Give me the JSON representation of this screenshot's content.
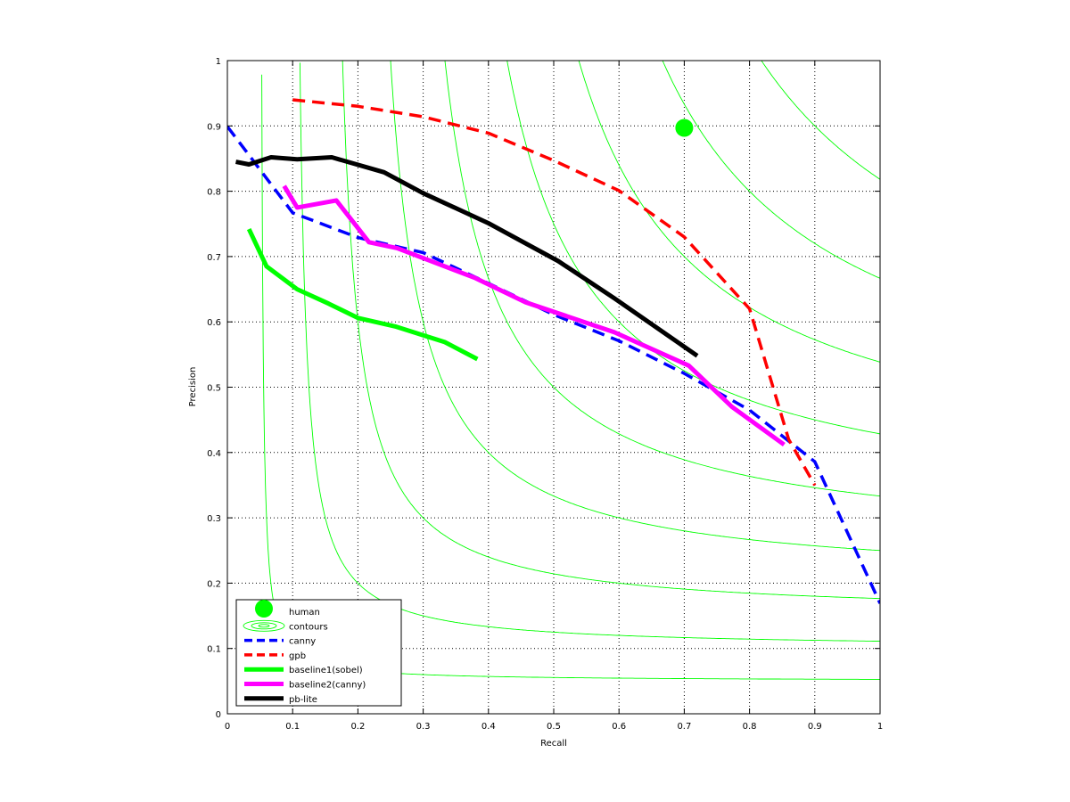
{
  "chart_data": {
    "type": "line",
    "xlabel": "Recall",
    "ylabel": "Precision",
    "xlim": [
      0,
      1
    ],
    "ylim": [
      0,
      1
    ],
    "xticks": [
      "0",
      "0.1",
      "0.2",
      "0.3",
      "0.4",
      "0.5",
      "0.6",
      "0.7",
      "0.8",
      "0.9",
      "1"
    ],
    "yticks": [
      "0",
      "0.1",
      "0.2",
      "0.3",
      "0.4",
      "0.5",
      "0.6",
      "0.7",
      "0.8",
      "0.9",
      "1"
    ],
    "grid": true,
    "legend_position": "bottom-left",
    "contours": {
      "name": "contours",
      "color": "#00ff00",
      "f_levels": [
        0.1,
        0.2,
        0.3,
        0.4,
        0.5,
        0.6,
        0.7,
        0.8,
        0.9
      ]
    },
    "series": [
      {
        "name": "human",
        "style": "marker",
        "color": "#00ff00",
        "x": [
          0.7
        ],
        "y": [
          0.897
        ]
      },
      {
        "name": "canny",
        "style": "dashed",
        "color": "#0000ff",
        "x": [
          0.0,
          0.1,
          0.2,
          0.3,
          0.4,
          0.5,
          0.6,
          0.7,
          0.8,
          0.9,
          1.0
        ],
        "y": [
          0.899,
          0.767,
          0.729,
          0.706,
          0.659,
          0.611,
          0.571,
          0.521,
          0.465,
          0.386,
          0.169
        ]
      },
      {
        "name": "gpb",
        "style": "dashed",
        "color": "#ff0000",
        "x": [
          0.1,
          0.2,
          0.3,
          0.4,
          0.5,
          0.6,
          0.7,
          0.8,
          0.86,
          0.9
        ],
        "y": [
          0.94,
          0.93,
          0.914,
          0.889,
          0.847,
          0.801,
          0.73,
          0.62,
          0.42,
          0.35
        ]
      },
      {
        "name": "baseline1(sobel)",
        "style": "solid",
        "color": "#00ff00",
        "x": [
          0.033,
          0.06,
          0.107,
          0.155,
          0.2,
          0.257,
          0.333,
          0.383
        ],
        "y": [
          0.742,
          0.685,
          0.65,
          0.628,
          0.606,
          0.593,
          0.569,
          0.543
        ]
      },
      {
        "name": "baseline2(canny)",
        "style": "solid",
        "color": "#ff00ff",
        "x": [
          0.087,
          0.107,
          0.167,
          0.217,
          0.26,
          0.38,
          0.457,
          0.593,
          0.707,
          0.773,
          0.853
        ],
        "y": [
          0.808,
          0.775,
          0.786,
          0.722,
          0.713,
          0.667,
          0.63,
          0.584,
          0.533,
          0.47,
          0.412
        ]
      },
      {
        "name": "pb-lite",
        "style": "solid",
        "color": "#000000",
        "x": [
          0.013,
          0.033,
          0.067,
          0.107,
          0.16,
          0.24,
          0.3,
          0.4,
          0.507,
          0.593,
          0.72
        ],
        "y": [
          0.845,
          0.841,
          0.852,
          0.849,
          0.852,
          0.829,
          0.797,
          0.751,
          0.693,
          0.636,
          0.548
        ]
      }
    ]
  }
}
